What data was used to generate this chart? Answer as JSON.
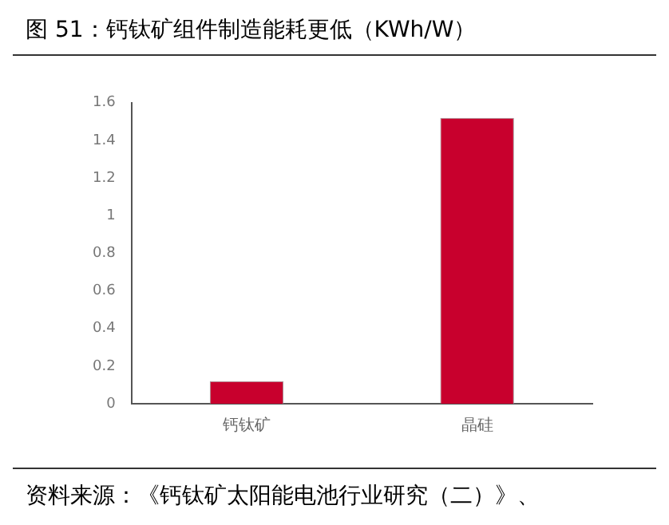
{
  "chart_data": {
    "type": "bar",
    "title": "图 51：钙钛矿组件制造能耗更低（KWh/W）",
    "categories": [
      "钙钛矿",
      "晶硅"
    ],
    "values": [
      0.12,
      1.52
    ],
    "color": "#c8002d",
    "ylim": [
      0,
      1.6
    ],
    "yticks": [
      0,
      0.2,
      0.4,
      0.6,
      0.8,
      1,
      1.2,
      1.4,
      1.6
    ],
    "grid": false,
    "legend": false,
    "annotations": [
      "资料来源：《钙钛矿太阳能电池行业研究（二）》、"
    ]
  }
}
